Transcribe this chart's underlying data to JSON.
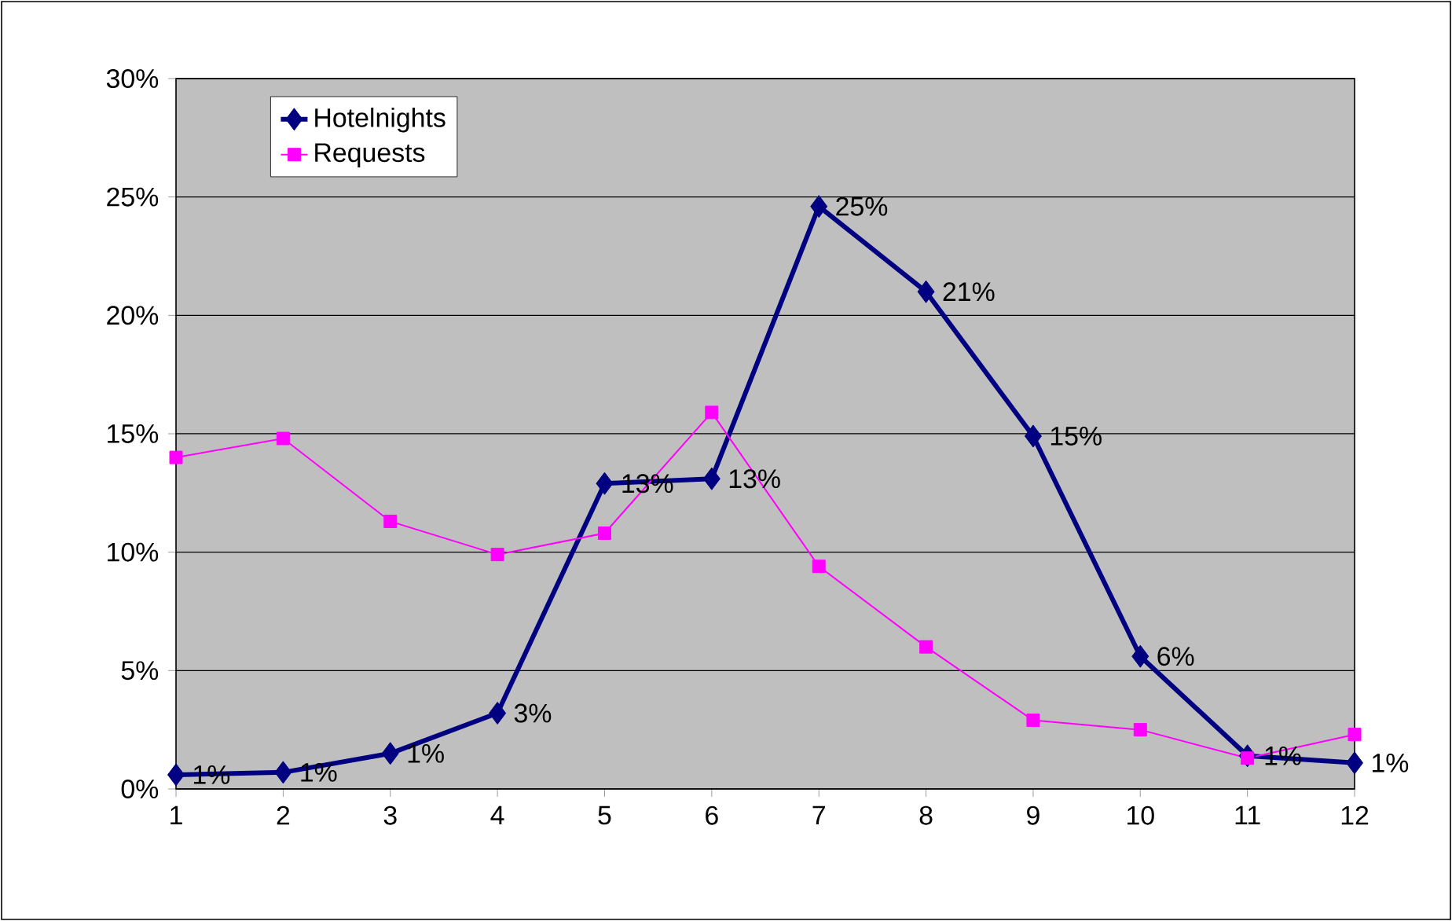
{
  "chart_data": {
    "type": "line",
    "categories": [
      "1",
      "2",
      "3",
      "4",
      "5",
      "6",
      "7",
      "8",
      "9",
      "10",
      "11",
      "12"
    ],
    "series": [
      {
        "name": "Hotelnights",
        "color": "#000080",
        "marker": "diamond",
        "values": [
          0.6,
          0.7,
          1.5,
          3.2,
          12.9,
          13.1,
          24.6,
          21.0,
          14.9,
          5.6,
          1.4,
          1.1
        ],
        "value_labels": [
          "1%",
          "1%",
          "1%",
          "3%",
          "13%",
          "13%",
          "25%",
          "21%",
          "15%",
          "6%",
          "1%",
          "1%"
        ]
      },
      {
        "name": "Requests",
        "color": "#ff00ff",
        "marker": "square",
        "values": [
          14.0,
          14.8,
          11.3,
          9.9,
          10.8,
          15.9,
          9.4,
          6.0,
          2.9,
          2.5,
          1.3,
          2.3
        ]
      }
    ],
    "ylim": [
      0,
      30
    ],
    "yticks": [
      {
        "value": 0,
        "label": "0%"
      },
      {
        "value": 5,
        "label": "5%"
      },
      {
        "value": 10,
        "label": "10%"
      },
      {
        "value": 15,
        "label": "15%"
      },
      {
        "value": 20,
        "label": "20%"
      },
      {
        "value": 25,
        "label": "25%"
      },
      {
        "value": 30,
        "label": "30%"
      }
    ],
    "grid": "y",
    "legend": "top left",
    "line_style": "solid"
  }
}
